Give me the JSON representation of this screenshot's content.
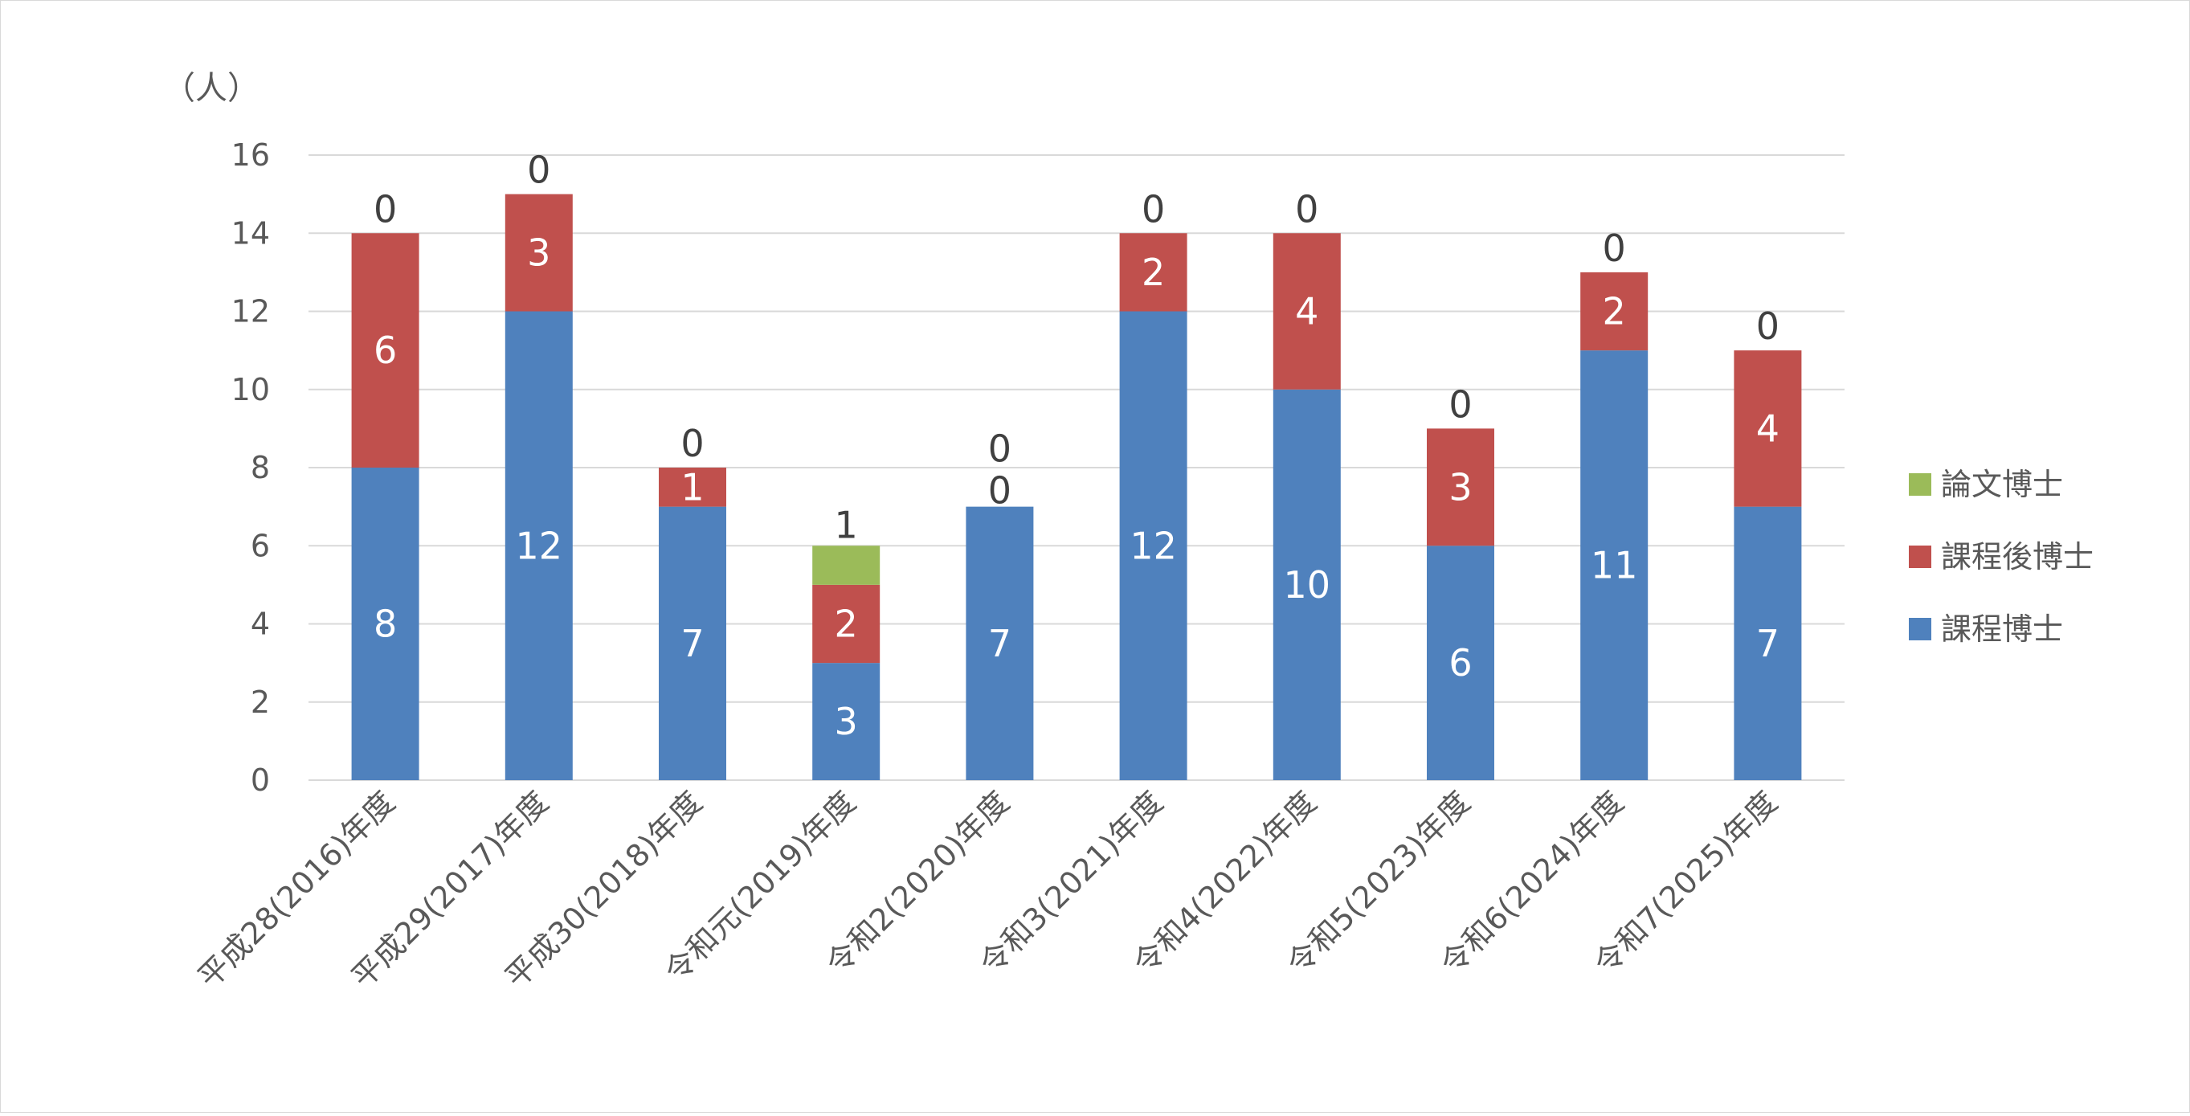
{
  "chart_data": {
    "type": "bar",
    "stacked": true,
    "unit_label": "（人）",
    "ylim": [
      0,
      16
    ],
    "yticks": [
      0,
      2,
      4,
      6,
      8,
      10,
      12,
      14,
      16
    ],
    "grid": true,
    "legend_position": "right",
    "categories": [
      "平成28(2016)年度",
      "平成29(2017)年度",
      "平成30(2018)年度",
      "令和元(2019)年度",
      "令和2(2020)年度",
      "令和3(2021)年度",
      "令和4(2022)年度",
      "令和5(2023)年度",
      "令和6(2024)年度",
      "令和7(2025)年度"
    ],
    "series": [
      {
        "name": "課程博士",
        "color": "#4f81bd",
        "values": [
          8,
          12,
          7,
          3,
          7,
          12,
          10,
          6,
          11,
          7
        ]
      },
      {
        "name": "課程後博士",
        "color": "#c0504d",
        "values": [
          6,
          3,
          1,
          2,
          0,
          2,
          4,
          3,
          2,
          4
        ]
      },
      {
        "name": "論文博士",
        "color": "#9bbb59",
        "values": [
          0,
          0,
          0,
          1,
          0,
          0,
          0,
          0,
          0,
          0
        ]
      }
    ]
  }
}
